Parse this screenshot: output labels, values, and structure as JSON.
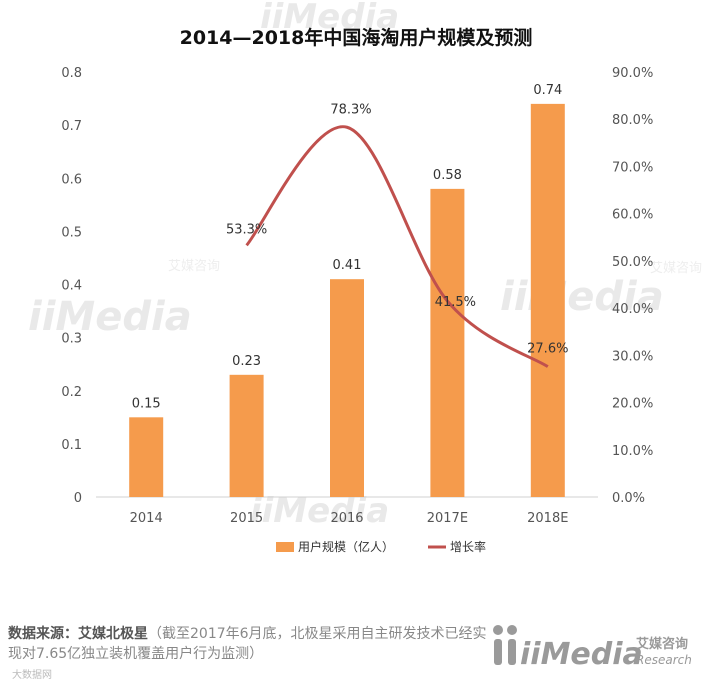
{
  "chart_data": {
    "type": "bar",
    "title": "2014—2018年中国海淘用户规模及预测",
    "categories": [
      "2014",
      "2015",
      "2016",
      "2017E",
      "2018E"
    ],
    "series": [
      {
        "name": "用户规模（亿人）",
        "kind": "bar",
        "axis": "left",
        "color": "#f59b4c",
        "values": [
          0.15,
          0.23,
          0.41,
          0.58,
          0.74
        ],
        "labels": [
          "0.15",
          "0.23",
          "0.41",
          "0.58",
          "0.74"
        ]
      },
      {
        "name": "增长率",
        "kind": "line",
        "axis": "right",
        "color": "#c0504d",
        "values": [
          null,
          53.3,
          78.3,
          41.5,
          27.6
        ],
        "labels": [
          "",
          "53.3%",
          "78.3%",
          "41.5%",
          "27.6%"
        ]
      }
    ],
    "y_left": {
      "min": 0,
      "max": 0.8,
      "ticks": [
        "0",
        "0.1",
        "0.2",
        "0.3",
        "0.4",
        "0.5",
        "0.6",
        "0.7",
        "0.8"
      ]
    },
    "y_right": {
      "min": 0,
      "max": 90,
      "ticks": [
        "0.0%",
        "10.0%",
        "20.0%",
        "30.0%",
        "40.0%",
        "50.0%",
        "60.0%",
        "70.0%",
        "80.0%",
        "90.0%"
      ]
    },
    "legend": [
      "用户规模（亿人）",
      "增长率"
    ],
    "legend_position": "bottom",
    "grid": false
  },
  "source": {
    "label": "数据来源：艾媒北极星",
    "note": "（截至2017年6月底，北极星采用自主研发技术已经实现对7.65亿独立装机覆盖用户行为监测）"
  },
  "watermark": {
    "brand": "iiMedia",
    "brand_cn": "艾媒咨询",
    "brand_en": "Research"
  },
  "footer_tag": "大数据网",
  "colors": {
    "bar": "#f59b4c",
    "line": "#c0504d",
    "watermark": "#e9e9e9",
    "logo": "#9a9a9a"
  }
}
